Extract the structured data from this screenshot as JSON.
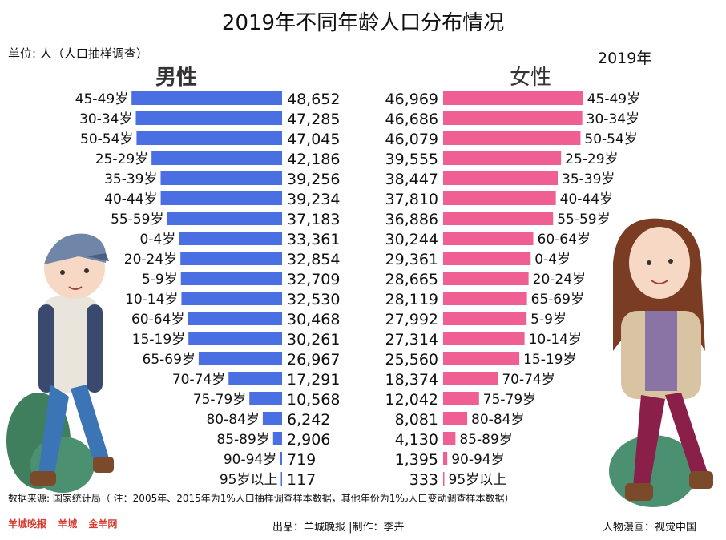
{
  "title": "2019年不同年龄人口分布情况",
  "unit": "单位: 人（人口抽样调查）",
  "year": "2019年",
  "male_label": "男性",
  "female_label": "女性",
  "source": "数据来源: 国家统计局（ 注：2005年、2015年为1%人口抽样调查样本数据，其他年份为1‰人口变动调查样本数据）",
  "publisher": "出品：羊城晚报 |制作：李卉",
  "illustration": "人物漫画：视觉中国",
  "logos": [
    "羊城晚报",
    "羊城",
    "金羊网"
  ],
  "colors": {
    "male": "#4a6fe3",
    "female": "#ef5f93"
  },
  "icons": [
    "boy-illustration",
    "girl-illustration"
  ],
  "chart_data": {
    "type": "bar",
    "title": "2019年不同年龄人口分布情况",
    "series": [
      {
        "name": "男性",
        "categories": [
          "45-49岁",
          "30-34岁",
          "50-54岁",
          "25-29岁",
          "35-39岁",
          "40-44岁",
          "55-59岁",
          "0-4岁",
          "20-24岁",
          "5-9岁",
          "10-14岁",
          "60-64岁",
          "15-19岁",
          "65-69岁",
          "70-74岁",
          "75-79岁",
          "80-84岁",
          "85-89岁",
          "90-94岁",
          "95岁以上"
        ],
        "values": [
          48652,
          47285,
          47045,
          42186,
          39256,
          39234,
          37183,
          33361,
          32854,
          32709,
          32530,
          30468,
          30261,
          26967,
          17291,
          10568,
          6242,
          2906,
          719,
          117
        ],
        "labels": [
          "48,652",
          "47,285",
          "47,045",
          "42,186",
          "39,256",
          "39,234",
          "37,183",
          "33,361",
          "32,854",
          "32,709",
          "32,530",
          "30,468",
          "30,261",
          "26,967",
          "17,291",
          "10,568",
          "6,242",
          "2,906",
          "719",
          "117"
        ]
      },
      {
        "name": "女性",
        "categories": [
          "45-49岁",
          "30-34岁",
          "50-54岁",
          "25-29岁",
          "35-39岁",
          "40-44岁",
          "55-59岁",
          "60-64岁",
          "0-4岁",
          "20-24岁",
          "65-69岁",
          "5-9岁",
          "10-14岁",
          "15-19岁",
          "70-74岁",
          "75-79岁",
          "80-84岁",
          "85-89岁",
          "90-94岁",
          "95岁以上"
        ],
        "values": [
          46969,
          46686,
          46079,
          39555,
          38447,
          37810,
          36886,
          30244,
          29361,
          28665,
          28119,
          27992,
          27314,
          25560,
          18374,
          12042,
          8081,
          4130,
          1395,
          333
        ],
        "labels": [
          "46,969",
          "46,686",
          "46,079",
          "39,555",
          "38,447",
          "37,810",
          "36,886",
          "30,244",
          "29,361",
          "28,665",
          "28,119",
          "27,992",
          "27,314",
          "25,560",
          "18,374",
          "12,042",
          "8,081",
          "4,130",
          "1,395",
          "333"
        ]
      }
    ],
    "xlim": [
      0,
      50000
    ]
  }
}
